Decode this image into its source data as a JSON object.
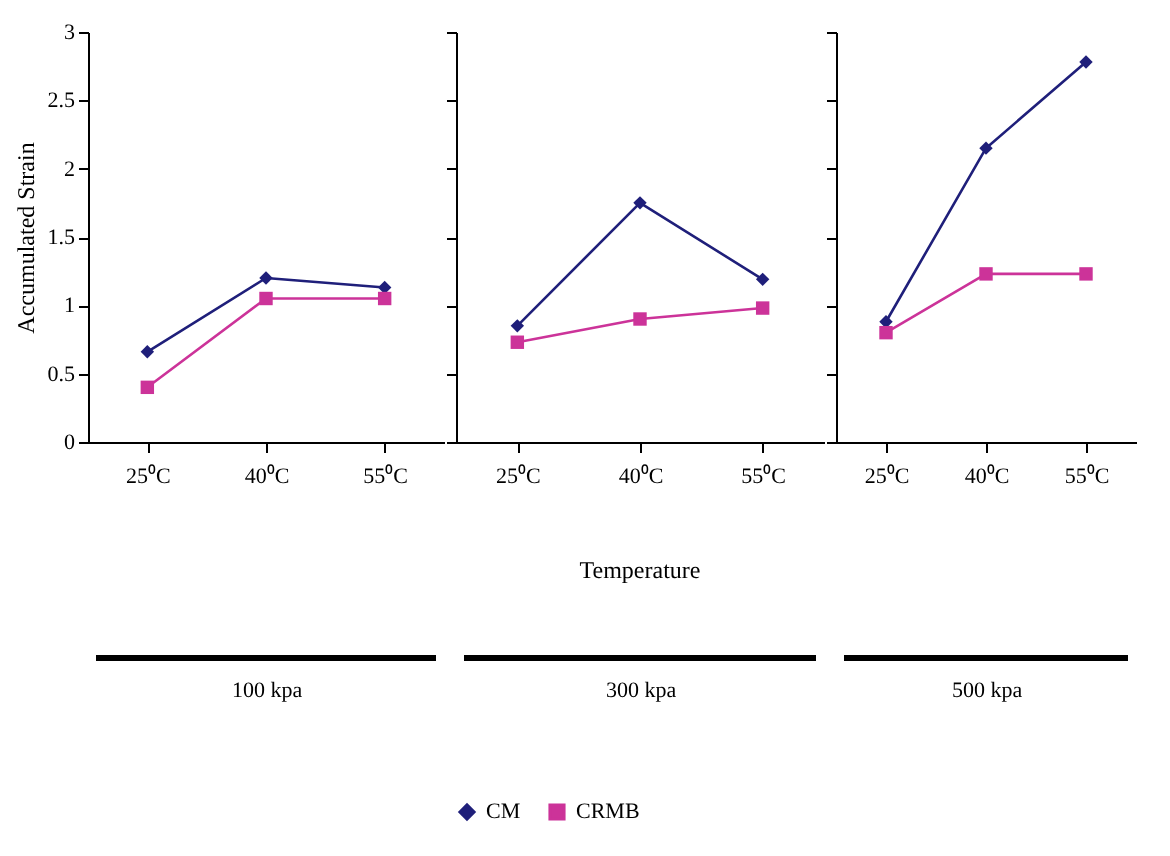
{
  "chart_data": [
    {
      "type": "line",
      "ylabel": "Accumulated Strain",
      "xlabel": "100 kpa",
      "categories": [
        "25⁰C",
        "40⁰C",
        "55⁰C"
      ],
      "ylim": [
        0,
        3
      ],
      "yticks": [
        0,
        0.5,
        1,
        1.5,
        2,
        2.5,
        3
      ],
      "series": [
        {
          "color": "#1f1f7a",
          "marker": "diamond",
          "values": [
            0.66,
            1.2,
            1.13
          ]
        },
        {
          "color": "#cc3399",
          "marker": "square",
          "values": [
            0.4,
            1.05,
            1.05
          ]
        }
      ]
    },
    {
      "type": "line",
      "xlabel": "300 kpa",
      "annotations": [
        "Temperature"
      ],
      "categories": [
        "25⁰C",
        "40⁰C",
        "55⁰C"
      ],
      "ylim": [
        0,
        3
      ],
      "yticks": [
        0,
        0.5,
        1,
        1.5,
        2,
        2.5,
        3
      ],
      "tick_labels": "x",
      "legend": "bottom",
      "series": [
        {
          "name": "CM",
          "color": "#1f1f7a",
          "marker": "diamond",
          "values": [
            0.85,
            1.75,
            1.19
          ]
        },
        {
          "name": "CRMB",
          "color": "#cc3399",
          "marker": "square",
          "values": [
            0.73,
            0.9,
            0.98
          ]
        }
      ]
    },
    {
      "type": "line",
      "xlabel": "500 kpa",
      "categories": [
        "25⁰C",
        "40⁰C",
        "55⁰C"
      ],
      "ylim": [
        0,
        3
      ],
      "yticks": [
        0,
        0.5,
        1,
        1.5,
        2,
        2.5,
        3
      ],
      "tick_labels": "x",
      "series": [
        {
          "color": "#1f1f7a",
          "marker": "diamond",
          "values": [
            0.88,
            2.15,
            2.78
          ]
        },
        {
          "color": "#cc3399",
          "marker": "square",
          "values": [
            0.8,
            1.23,
            1.23
          ]
        }
      ]
    }
  ]
}
